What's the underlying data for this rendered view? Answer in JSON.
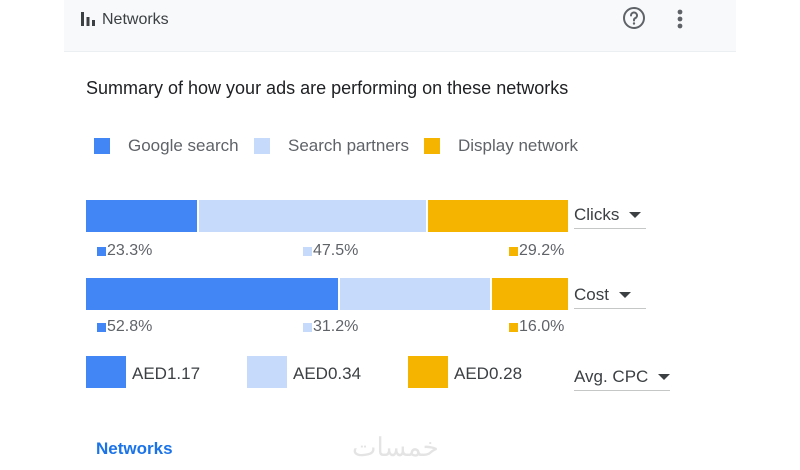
{
  "header": {
    "title": "Networks"
  },
  "summary_text": "Summary of how your ads are performing on these networks",
  "legend": [
    {
      "label": "Google search",
      "color": "#4285f4"
    },
    {
      "label": "Search partners",
      "color": "#c6dafc"
    },
    {
      "label": "Display network",
      "color": "#f4b400"
    }
  ],
  "clicks_row": {
    "metric_label": "Clicks",
    "values": [
      23.3,
      47.5,
      29.2
    ],
    "labels": [
      "23.3%",
      "47.5%",
      "29.2%"
    ]
  },
  "cost_row": {
    "metric_label": "Cost",
    "values": [
      52.8,
      31.2,
      16.0
    ],
    "labels": [
      "52.8%",
      "31.2%",
      "16.0%"
    ]
  },
  "cpc_row": {
    "metric_label": "Avg. CPC",
    "values": [
      "AED1.17",
      "AED0.34",
      "AED0.28"
    ]
  },
  "footer_link": "Networks",
  "watermark": "خمسات"
}
